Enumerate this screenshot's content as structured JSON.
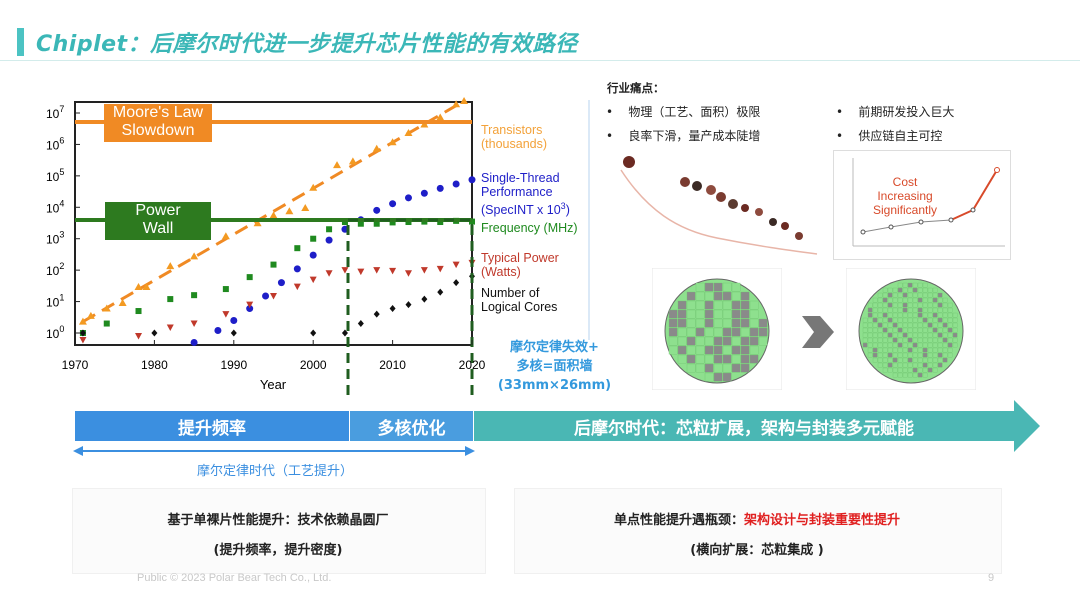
{
  "slide": {
    "title": "Chiplet：后摩尔时代进一步提升芯片性能的有效路径",
    "footer_left": "Public © 2023 Polar Bear Tech Co., Ltd.",
    "page_number": "9"
  },
  "chart": {
    "moores_law_label": "Moore's Law Slowdown",
    "moores_law_line1": "Moore's Law",
    "moores_law_line2": "Slowdown",
    "power_wall_line1": "Power",
    "power_wall_line2": "Wall",
    "legend": {
      "transistors_1": "Transistors",
      "transistors_2": "(thousands)",
      "single_thread_1": "Single-Thread",
      "single_thread_2": "Performance",
      "single_thread_3": "(SpecINT x 10",
      "single_thread_sup": "3",
      "single_thread_close": ")",
      "frequency": "Frequency (MHz)",
      "power_1": "Typical Power",
      "power_2": "(Watts)",
      "cores_1": "Number of",
      "cores_2": "Logical Cores"
    },
    "y_ticks": [
      "10",
      "10",
      "10",
      "10",
      "10",
      "10",
      "10",
      "10"
    ],
    "y_exps": [
      "0",
      "1",
      "2",
      "3",
      "4",
      "5",
      "6",
      "7"
    ],
    "x_ticks": [
      "1970",
      "1980",
      "1990",
      "2000",
      "2010",
      "2020"
    ],
    "xlabel": "Year",
    "annotation_1": "摩尔定律失效+",
    "annotation_2": "多核=面积墙",
    "annotation_3": "(33mm×26mm)",
    "colors": {
      "transistors": "#f39a22",
      "single_thread": "#1e1ec8",
      "frequency": "#1f8a1f",
      "power": "#c0392b",
      "cores": "#111111",
      "moores_line": "#f08a24",
      "power_wall": "#2d7a1f"
    }
  },
  "chart_data": {
    "type": "scatter",
    "xlabel": "Year",
    "ylabel": "",
    "xlim": [
      1970,
      2020
    ],
    "ylim_log10": [
      0,
      7
    ],
    "y_scale": "log",
    "series": [
      {
        "name": "Transistors (thousands)",
        "x": [
          1971,
          1972,
          1974,
          1976,
          1978,
          1979,
          1982,
          1985,
          1989,
          1993,
          1995,
          1997,
          1999,
          2000,
          2003,
          2005,
          2008,
          2010,
          2012,
          2014,
          2016,
          2018,
          2019
        ],
        "y": [
          2.3,
          3.5,
          6,
          9,
          29,
          29,
          134,
          275,
          1200,
          3100,
          5500,
          7500,
          9500,
          42000,
          220000,
          290000,
          730000,
          1170000,
          2300000,
          4300000,
          7200000,
          19000000,
          24000000
        ]
      },
      {
        "name": "Single-Thread Performance (SpecINT x 10^3)",
        "x": [
          1985,
          1988,
          1990,
          1992,
          1994,
          1996,
          1998,
          2000,
          2002,
          2004,
          2006,
          2008,
          2010,
          2012,
          2014,
          2016,
          2018,
          2020
        ],
        "y": [
          0.5,
          1.2,
          2.5,
          6,
          15,
          40,
          110,
          300,
          900,
          2000,
          4000,
          8000,
          13000,
          20000,
          28000,
          40000,
          55000,
          75000
        ]
      },
      {
        "name": "Frequency (MHz)",
        "x": [
          1971,
          1974,
          1978,
          1982,
          1985,
          1989,
          1992,
          1995,
          1998,
          2000,
          2002,
          2004,
          2006,
          2008,
          2010,
          2012,
          2014,
          2016,
          2018,
          2020
        ],
        "y": [
          1,
          2,
          5,
          12,
          16,
          25,
          60,
          150,
          500,
          1000,
          2000,
          3400,
          3000,
          3000,
          3300,
          3400,
          3500,
          3400,
          3700,
          3500
        ]
      },
      {
        "name": "Typical Power (Watts)",
        "x": [
          1971,
          1978,
          1982,
          1985,
          1989,
          1992,
          1995,
          1998,
          2000,
          2002,
          2004,
          2006,
          2008,
          2010,
          2012,
          2014,
          2016,
          2018,
          2020
        ],
        "y": [
          0.6,
          0.8,
          1.5,
          2,
          4,
          8,
          15,
          30,
          50,
          80,
          100,
          90,
          100,
          95,
          80,
          100,
          110,
          150,
          170
        ]
      },
      {
        "name": "Number of Logical Cores",
        "x": [
          1971,
          1980,
          1990,
          2000,
          2004,
          2006,
          2008,
          2010,
          2012,
          2014,
          2016,
          2018,
          2020
        ],
        "y": [
          1,
          1,
          1,
          1,
          1,
          2,
          4,
          6,
          8,
          12,
          20,
          40,
          64
        ]
      }
    ]
  },
  "timeline": {
    "phase1": "提升频率",
    "phase2": "多核优化",
    "phase3": "后摩尔时代：芯粒扩展，架构与封装多元赋能",
    "era_label": "摩尔定律时代（工艺提升）"
  },
  "pain_points": {
    "heading": "行业痛点：",
    "items": [
      "物理（工艺、面积）极限",
      "前期研发投入巨大",
      "良率下滑，量产成本陡增",
      "供应链自主可控"
    ],
    "bullet": "•"
  },
  "cost_chart": {
    "annotation_1": "Cost Increasing",
    "annotation_2": "Significantly"
  },
  "bottom_boxes": {
    "left_line1": "基于单裸片性能提升：技术依赖晶圆厂",
    "left_line2": "(提升频率，提升密度)",
    "right_line1_a": "单点性能提升遇瓶颈：",
    "right_line1_b": "架构设计与封装重要性提升",
    "right_line2": "(横向扩展：芯粒集成 )"
  }
}
